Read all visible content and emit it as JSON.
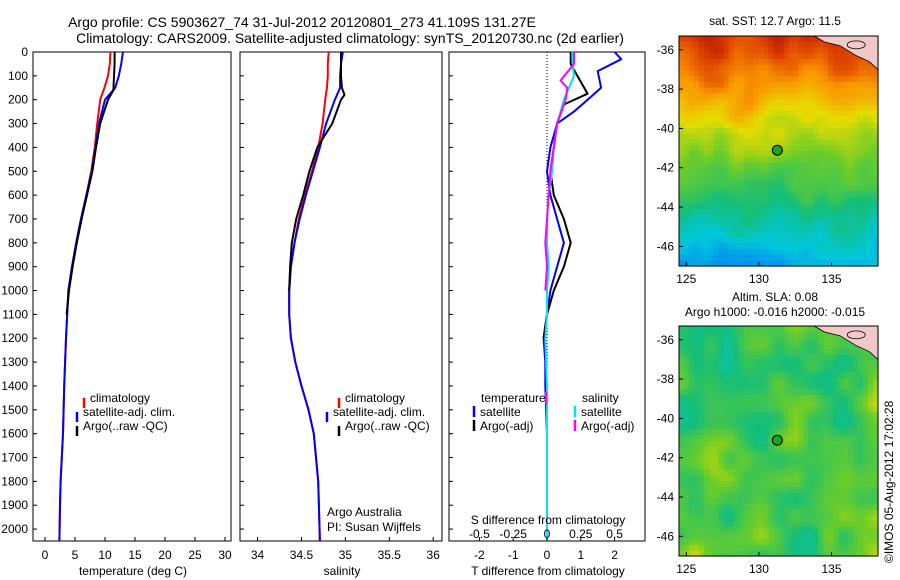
{
  "header": {
    "line1": "Argo profile: CS 5903627_74 31-Jul-2012 20120801_273 41.109S 131.27E",
    "line2": "Climatology: CARS2009. Satellite-adjusted climatology: synTS_20120730.nc (2d earlier)"
  },
  "side_stamp": "©IMOS 05-Aug-2012 17:02:28",
  "colors": {
    "climatology": "#ff0000",
    "satellite": "#0000ff",
    "argo": "#000000",
    "salinity_satellite": "#00e5ee",
    "salinity_argo": "#ff00ff"
  },
  "chart_data": [
    {
      "id": "temperature",
      "type": "line",
      "xlabel": "temperature (deg C)",
      "ylabel": "",
      "xlim": [
        -2,
        31
      ],
      "ylim": [
        2050,
        0
      ],
      "xticks": [
        "0",
        "5",
        "10",
        "15",
        "20",
        "25",
        "30"
      ],
      "yticks": [
        "0",
        "100",
        "200",
        "300",
        "400",
        "500",
        "600",
        "700",
        "800",
        "900",
        "1000",
        "1100",
        "1200",
        "1300",
        "1400",
        "1500",
        "1600",
        "1700",
        "1800",
        "1900",
        "2000"
      ],
      "legend": [
        "climatology",
        "satellite-adj. clim.",
        "Argo(..raw -QC)"
      ],
      "legend_position": "lower-center",
      "series": [
        {
          "name": "climatology",
          "color": "#ff0000",
          "x": [
            10.9,
            10.8,
            10.5,
            9.9,
            9.2,
            8.7,
            8.3,
            7.7,
            6.9,
            6.0,
            5.2,
            4.5,
            3.9,
            3.5,
            3.2,
            3.0,
            2.8,
            2.6,
            2.5,
            2.4
          ],
          "y": [
            0,
            50,
            100,
            150,
            200,
            300,
            400,
            500,
            600,
            700,
            800,
            900,
            1000,
            1200,
            1400,
            1600,
            1700,
            1800,
            1900,
            2050
          ]
        },
        {
          "name": "satellite-adj. clim.",
          "color": "#0000ff",
          "x": [
            13.0,
            12.7,
            12.3,
            11.7,
            10.0,
            9.0,
            8.4,
            7.8,
            6.9,
            6.0,
            5.2,
            4.5,
            3.9,
            3.5,
            3.2,
            3.0,
            2.8,
            2.6,
            2.5,
            2.4
          ],
          "y": [
            0,
            50,
            100,
            150,
            200,
            300,
            400,
            500,
            600,
            700,
            800,
            900,
            1000,
            1200,
            1400,
            1600,
            1700,
            1800,
            1900,
            2050
          ]
        },
        {
          "name": "Argo(..raw -QC)",
          "color": "#000000",
          "x": [
            11.6,
            11.6,
            11.5,
            11.4,
            10.5,
            9.2,
            8.5,
            7.9,
            7.0,
            6.1,
            5.3,
            4.6,
            4.0,
            3.6
          ],
          "y": [
            0,
            50,
            100,
            160,
            200,
            300,
            400,
            500,
            600,
            700,
            800,
            900,
            1000,
            1100
          ]
        }
      ]
    },
    {
      "id": "salinity",
      "type": "line",
      "xlabel": "salinity",
      "xlim": [
        33.8,
        36.1
      ],
      "ylim": [
        2050,
        0
      ],
      "xticks": [
        "34",
        "34.5",
        "35",
        "35.5",
        "36"
      ],
      "legend": [
        "climatology",
        "satellite-adj. clim.",
        "Argo(..raw -QC)"
      ],
      "legend_position": "lower-center",
      "annotation": [
        "Argo Australia",
        "PI: Susan Wijffels"
      ],
      "series": [
        {
          "name": "climatology",
          "color": "#ff0000",
          "x": [
            34.81,
            34.8,
            34.8,
            34.79,
            34.77,
            34.74,
            34.69,
            34.62,
            34.54,
            34.47,
            34.42,
            34.38,
            34.36,
            34.36,
            34.38,
            34.43,
            34.5,
            34.58,
            34.64,
            34.69,
            34.71
          ],
          "y": [
            0,
            50,
            100,
            150,
            200,
            300,
            400,
            500,
            600,
            700,
            800,
            900,
            1000,
            1100,
            1200,
            1300,
            1400,
            1500,
            1600,
            1800,
            2050
          ]
        },
        {
          "name": "satellite-adj. clim.",
          "color": "#0000ff",
          "x": [
            34.97,
            34.95,
            34.94,
            34.94,
            34.88,
            34.78,
            34.71,
            34.63,
            34.55,
            34.48,
            34.42,
            34.38,
            34.36,
            34.36,
            34.38,
            34.43,
            34.5,
            34.58,
            34.64,
            34.69,
            34.71
          ],
          "y": [
            0,
            50,
            100,
            150,
            200,
            300,
            400,
            500,
            600,
            700,
            800,
            900,
            1000,
            1100,
            1200,
            1300,
            1400,
            1500,
            1600,
            1800,
            2050
          ]
        },
        {
          "name": "Argo(..raw -QC)",
          "color": "#000000",
          "x": [
            34.95,
            34.95,
            34.95,
            34.96,
            34.99,
            34.95,
            34.85,
            34.68,
            34.59,
            34.52,
            34.44,
            34.39,
            34.37,
            34.36
          ],
          "y": [
            0,
            50,
            100,
            150,
            180,
            200,
            300,
            400,
            500,
            600,
            700,
            800,
            900,
            1000
          ]
        }
      ]
    },
    {
      "id": "difference",
      "type": "line",
      "xlabel": "T difference from climatology",
      "xlabel_top": "S difference from climatology",
      "xlim": [
        -2.9,
        2.9
      ],
      "ylim": [
        2050,
        0
      ],
      "xticks": [
        "-2",
        "-1",
        "0",
        "1",
        "2"
      ],
      "xticks_secondary": [
        "-0.5",
        "-0.25",
        "0",
        "0.25",
        "0.5"
      ],
      "zero_line": "dotted",
      "legend_title_left": "temperature",
      "legend_title_right": "salinity",
      "legend": [
        "satellite",
        "Argo(-adj)",
        "satellite",
        "Argo(-adj)"
      ],
      "legend_position": "lower-center",
      "series": [
        {
          "name": "satellite",
          "group": "temperature",
          "color": "#0000ff",
          "x": [
            2.0,
            2.2,
            1.5,
            1.6,
            1.2,
            0.8,
            0.3,
            0.1,
            0.0,
            0.1,
            0.3,
            0.5,
            0.3,
            0.1,
            0.0,
            -0.1,
            -0.05,
            -0.05,
            0.0,
            0.0,
            0.0
          ],
          "y": [
            0,
            30,
            80,
            150,
            200,
            250,
            300,
            400,
            500,
            600,
            700,
            800,
            900,
            1000,
            1100,
            1200,
            1300,
            1400,
            1600,
            1800,
            2050
          ]
        },
        {
          "name": "Argo(-adj)",
          "group": "temperature",
          "color": "#000000",
          "x": [
            0.7,
            0.7,
            0.9,
            1.2,
            0.5,
            0.3,
            0.2,
            0.1,
            0.2,
            0.5,
            0.7,
            0.5,
            0.2,
            0.0,
            -0.1
          ],
          "y": [
            0,
            50,
            100,
            175,
            220,
            300,
            400,
            500,
            600,
            700,
            800,
            900,
            1000,
            1100,
            1200
          ]
        },
        {
          "name": "satellite",
          "group": "salinity",
          "color": "#00e5ee",
          "x": [
            0.75,
            0.75,
            0.8,
            0.5,
            0.3,
            0.2,
            0.15,
            0.05,
            0.0,
            0.0,
            0.05,
            0.0,
            0.0,
            -0.05,
            0.0,
            0.0,
            0.0,
            0.0
          ],
          "y": [
            0,
            30,
            100,
            200,
            300,
            400,
            500,
            600,
            700,
            800,
            900,
            1000,
            1100,
            1200,
            1400,
            1600,
            1800,
            2050
          ]
        },
        {
          "name": "Argo(-adj)",
          "group": "salinity",
          "color": "#ff00ff",
          "x": [
            0.8,
            0.8,
            0.4,
            0.6,
            0.55,
            0.3,
            0.2,
            0.1,
            0.05,
            0.0,
            -0.05,
            0.0,
            -0.05
          ],
          "y": [
            0,
            50,
            120,
            150,
            200,
            300,
            400,
            500,
            600,
            700,
            800,
            900,
            1000
          ]
        }
      ]
    },
    {
      "id": "sst_map",
      "type": "heatmap",
      "title": "sat. SST: 12.7 Argo: 11.5",
      "xlim": [
        124.5,
        138.2
      ],
      "ylim": [
        -47,
        -35.3
      ],
      "xticks": [
        "125",
        "130",
        "135"
      ],
      "yticks": [
        "-36",
        "-38",
        "-40",
        "-42",
        "-44",
        "-46"
      ],
      "marker": {
        "lon": 131.27,
        "lat": -41.109
      }
    },
    {
      "id": "sla_map",
      "type": "heatmap",
      "title_line1": "Altim. SLA: 0.08",
      "title_line2": "Argo h1000: -0.016 h2000: -0.015",
      "xlim": [
        124.5,
        138.2
      ],
      "ylim": [
        -47,
        -35.3
      ],
      "xticks": [
        "125",
        "130",
        "135"
      ],
      "yticks": [
        "-36",
        "-38",
        "-40",
        "-42",
        "-44",
        "-46"
      ],
      "marker": {
        "lon": 131.27,
        "lat": -41.109
      }
    }
  ]
}
